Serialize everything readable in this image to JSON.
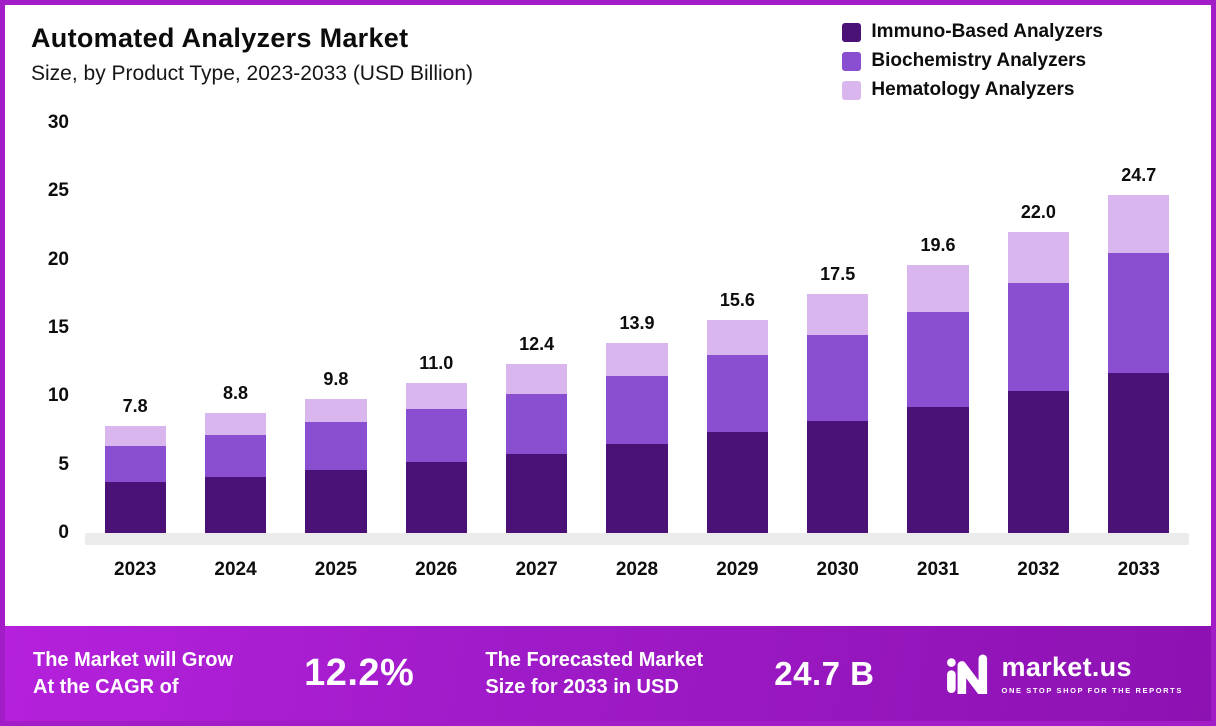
{
  "header": {
    "title": "Automated Analyzers Market",
    "subtitle": "Size, by Product Type, 2023-2033 (USD Billion)"
  },
  "legend": [
    {
      "label": "Immuno-Based Analyzers",
      "color": "#4a1277"
    },
    {
      "label": "Biochemistry Analyzers",
      "color": "#8a4fd0"
    },
    {
      "label": "Hematology Analyzers",
      "color": "#d9b6ed"
    }
  ],
  "chart_data": {
    "type": "bar",
    "stacked": true,
    "title": "Automated Analyzers Market Size, by Product Type, 2023-2033 (USD Billion)",
    "categories": [
      "2023",
      "2024",
      "2025",
      "2026",
      "2027",
      "2028",
      "2029",
      "2030",
      "2031",
      "2032",
      "2033"
    ],
    "series": [
      {
        "name": "Immuno-Based Analyzers",
        "color": "#4a1277",
        "values": [
          3.7,
          4.1,
          4.6,
          5.2,
          5.8,
          6.5,
          7.4,
          8.2,
          9.2,
          10.4,
          11.7
        ]
      },
      {
        "name": "Biochemistry Analyzers",
        "color": "#8a4fd0",
        "values": [
          2.7,
          3.1,
          3.5,
          3.9,
          4.4,
          5.0,
          5.6,
          6.3,
          7.0,
          7.9,
          8.8
        ]
      },
      {
        "name": "Hematology Analyzers",
        "color": "#d9b6ed",
        "values": [
          1.4,
          1.6,
          1.7,
          1.9,
          2.2,
          2.4,
          2.6,
          3.0,
          3.4,
          3.7,
          4.2
        ]
      }
    ],
    "totals": [
      "7.8",
      "8.8",
      "9.8",
      "11.0",
      "12.4",
      "13.9",
      "15.6",
      "17.5",
      "19.6",
      "22.0",
      "24.7"
    ],
    "y_ticks": [
      0,
      5,
      10,
      15,
      20,
      25,
      30
    ],
    "ylim": [
      0,
      30
    ],
    "grid": false,
    "legend_position": "top-right"
  },
  "banner": {
    "cagr": {
      "line1": "The Market will Grow",
      "line2": "At the CAGR of",
      "value": "12.2%"
    },
    "forecast": {
      "line1": "The Forecasted Market",
      "line2": "Size for 2033 in USD",
      "value": "24.7 B"
    },
    "logo": {
      "name": "market.us",
      "tagline": "ONE STOP SHOP FOR THE REPORTS"
    }
  }
}
